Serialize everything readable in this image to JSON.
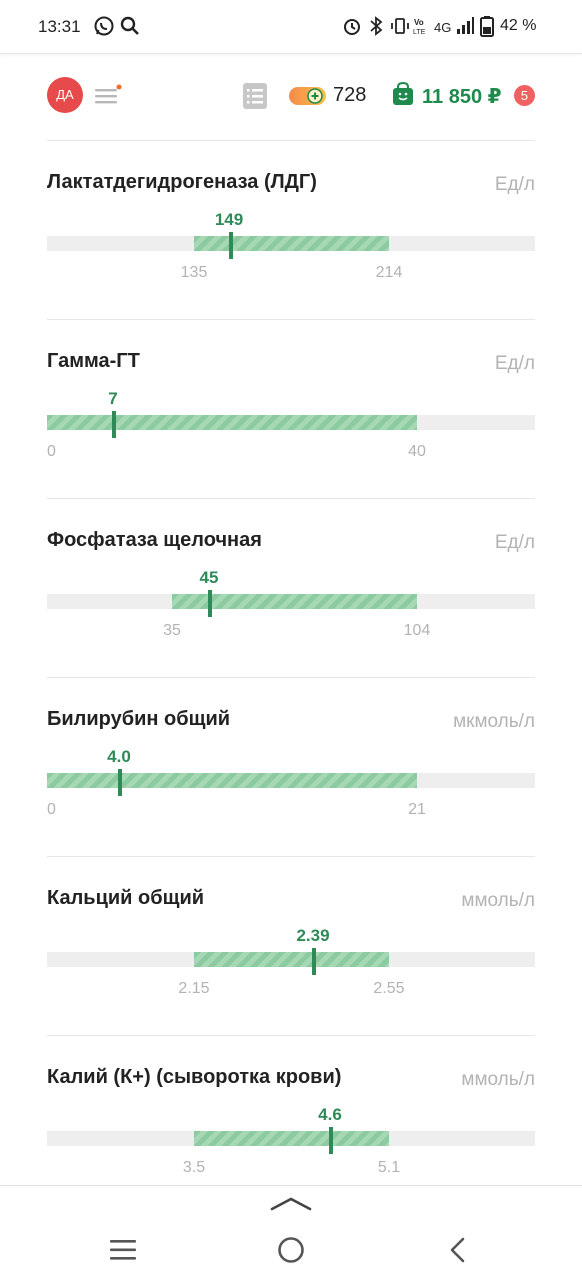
{
  "status": {
    "time": "13:31",
    "battery": "42 %"
  },
  "header": {
    "avatar_initials": "ДА",
    "coins": "728",
    "balance": "11 850 ₽",
    "notifications": "5",
    "accent": "#1f8a4c"
  },
  "results": [
    {
      "name": "Лактатдегидрогеназа (ЛДГ)",
      "unit": "Ед/л",
      "value": "149",
      "low": "135",
      "high": "214"
    },
    {
      "name": "Гамма-ГТ",
      "unit": "Ед/л",
      "value": "7",
      "low": "0",
      "high": "40"
    },
    {
      "name": "Фосфатаза щелочная",
      "unit": "Ед/л",
      "value": "45",
      "low": "35",
      "high": "104"
    },
    {
      "name": "Билирубин общий",
      "unit": "мкмоль/л",
      "value": "4.0",
      "low": "0",
      "high": "21"
    },
    {
      "name": "Кальций общий",
      "unit": "ммоль/л",
      "value": "2.39",
      "low": "2.15",
      "high": "2.55"
    },
    {
      "name": "Калий (К+) (сыворотка крови)",
      "unit": "ммоль/л",
      "value": "4.6",
      "low": "3.5",
      "high": "5.1"
    }
  ],
  "icons": {
    "status": [
      "whatsapp-icon",
      "search-icon",
      "alarm-icon",
      "bluetooth-icon",
      "vibrate-icon",
      "volte-icon",
      "signal-icon",
      "battery-icon"
    ],
    "nav": [
      "recent-apps-icon",
      "home-icon",
      "back-icon",
      "swipe-up-icon"
    ]
  }
}
